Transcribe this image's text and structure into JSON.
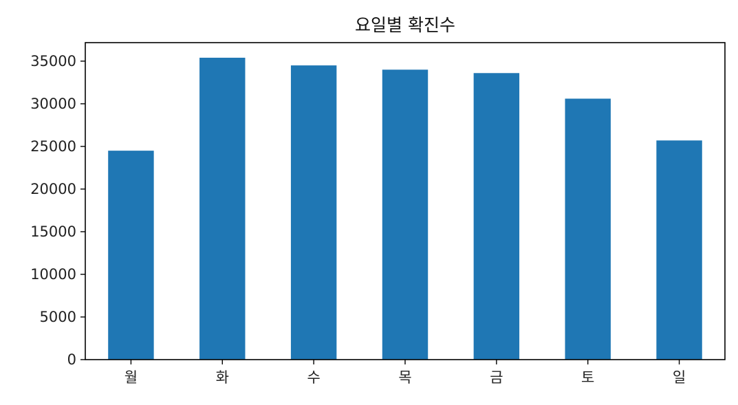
{
  "chart_data": {
    "type": "bar",
    "title": "요일별 확진수",
    "xlabel": "",
    "ylabel": "",
    "categories": [
      "월",
      "화",
      "수",
      "목",
      "금",
      "토",
      "일"
    ],
    "values": [
      24500,
      35400,
      34500,
      34000,
      33600,
      30600,
      25700
    ],
    "yticks": [
      0,
      5000,
      10000,
      15000,
      20000,
      25000,
      30000,
      35000
    ],
    "ytick_labels": [
      "0",
      "5000",
      "10000",
      "15000",
      "20000",
      "25000",
      "30000",
      "35000"
    ],
    "ylim": [
      0,
      37170
    ],
    "bar_color": "#1f77b4",
    "grid": false,
    "legend": false
  }
}
